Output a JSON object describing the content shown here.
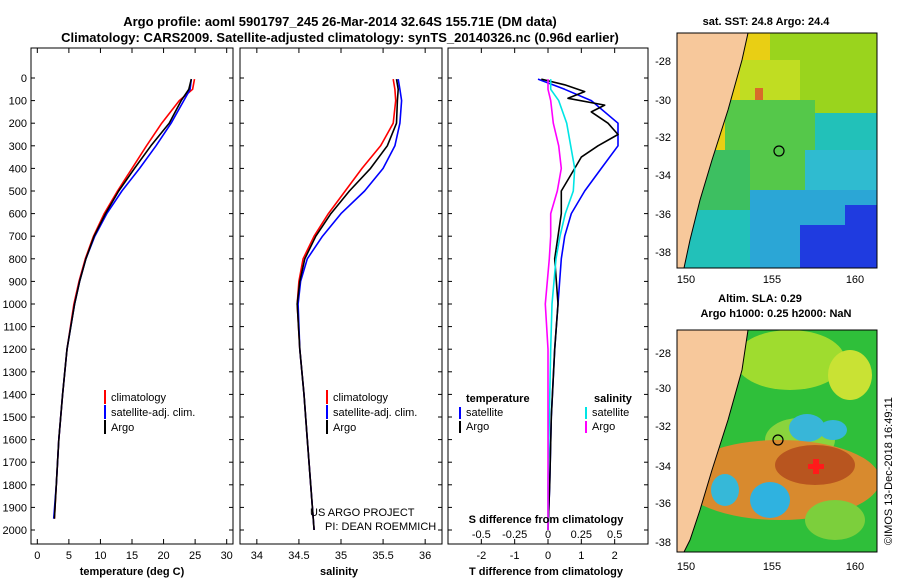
{
  "header": {
    "title_line1": "Argo profile: aoml 5901797_245 26-Mar-2014 32.64S 155.71E (DM data)",
    "title_line2": "Climatology: CARS2009. Satellite-adjusted climatology: synTS_20140326.nc (0.96d earlier)"
  },
  "colors": {
    "climatology": "#ff0000",
    "satellite": "#0000ff",
    "argo": "#000000",
    "sal_satellite": "#00e5e5",
    "sal_argo": "#ff00ff"
  },
  "depth_axis": {
    "ticks": [
      0,
      100,
      200,
      300,
      400,
      500,
      600,
      700,
      800,
      900,
      1000,
      1100,
      1200,
      1300,
      1400,
      1500,
      1600,
      1700,
      1800,
      1900,
      2000
    ],
    "ylim": [
      0,
      2060
    ]
  },
  "chart_data": [
    {
      "type": "line",
      "id": "temperature",
      "xlabel": "temperature (deg C)",
      "xlim": [
        -1,
        31
      ],
      "xticks": [
        0,
        5,
        10,
        15,
        20,
        25,
        30
      ],
      "legend": [
        "climatology",
        "satellite-adj. clim.",
        "Argo"
      ],
      "series": [
        {
          "name": "climatology",
          "depth": [
            5,
            50,
            100,
            200,
            300,
            400,
            500,
            600,
            700,
            800,
            900,
            1000,
            1200,
            1400,
            1600,
            1800,
            1950
          ],
          "values": [
            24.9,
            24.6,
            22.5,
            19.7,
            17.3,
            15.0,
            12.7,
            10.6,
            8.9,
            7.6,
            6.6,
            5.8,
            4.7,
            4.0,
            3.4,
            3.0,
            2.7
          ]
        },
        {
          "name": "satellite-adj. clim.",
          "depth": [
            5,
            50,
            100,
            200,
            300,
            400,
            500,
            600,
            700,
            800,
            900,
            1000,
            1200,
            1400,
            1600,
            1800,
            1950
          ],
          "values": [
            24.4,
            24.2,
            23.2,
            21.2,
            18.8,
            16.2,
            13.4,
            11.0,
            9.1,
            7.7,
            6.7,
            5.9,
            4.7,
            4.0,
            3.4,
            3.0,
            2.6
          ]
        },
        {
          "name": "Argo",
          "depth": [
            5,
            50,
            100,
            200,
            300,
            400,
            500,
            600,
            700,
            800,
            900,
            1000,
            1200,
            1400,
            1600,
            1800,
            1950
          ],
          "values": [
            24.4,
            24.0,
            22.8,
            20.9,
            18.0,
            15.4,
            12.9,
            10.8,
            9.0,
            7.7,
            6.7,
            5.9,
            4.7,
            4.0,
            3.4,
            3.0,
            2.7
          ]
        }
      ]
    },
    {
      "type": "line",
      "id": "salinity",
      "xlabel": "salinity",
      "xlim": [
        33.8,
        36.2
      ],
      "xticks": [
        34,
        34.5,
        35,
        35.5,
        36
      ],
      "legend": [
        "climatology",
        "satellite-adj. clim.",
        "Argo"
      ],
      "credit": [
        "US ARGO PROJECT",
        "PI: DEAN ROEMMICH"
      ],
      "series": [
        {
          "name": "climatology",
          "depth": [
            5,
            50,
            100,
            200,
            300,
            400,
            500,
            600,
            700,
            800,
            900,
            1000,
            1200,
            1400,
            1600,
            1800,
            2000
          ],
          "values": [
            35.62,
            35.64,
            35.65,
            35.62,
            35.47,
            35.25,
            35.05,
            34.85,
            34.68,
            34.55,
            34.5,
            34.48,
            34.51,
            34.56,
            34.6,
            34.64,
            34.68
          ]
        },
        {
          "name": "satellite-adj. clim.",
          "depth": [
            5,
            50,
            100,
            200,
            300,
            400,
            500,
            600,
            700,
            800,
            900,
            1000,
            1200,
            1400,
            1600,
            1800,
            2000
          ],
          "values": [
            35.68,
            35.7,
            35.72,
            35.7,
            35.64,
            35.5,
            35.28,
            35.0,
            34.78,
            34.6,
            34.52,
            34.49,
            34.51,
            34.56,
            34.6,
            34.64,
            34.68
          ]
        },
        {
          "name": "Argo",
          "depth": [
            5,
            50,
            100,
            200,
            300,
            400,
            500,
            600,
            700,
            800,
            900,
            1000,
            1200,
            1400,
            1600,
            1800,
            2000
          ],
          "values": [
            35.66,
            35.68,
            35.67,
            35.66,
            35.55,
            35.35,
            35.1,
            34.88,
            34.7,
            34.57,
            34.51,
            34.48,
            34.51,
            34.56,
            34.6,
            34.64,
            34.68
          ]
        }
      ]
    },
    {
      "type": "line",
      "id": "difference",
      "xlabel": "T difference from climatology",
      "xlabel_top": "S difference from climatology",
      "xlim": [
        -3,
        3
      ],
      "xticks": [
        -2,
        -1,
        0,
        1,
        2
      ],
      "xticks_top_labels": [
        "-0.5",
        "-0.25",
        "0",
        "0.25",
        "0.5"
      ],
      "legend_left_title": "temperature",
      "legend_right_title": "salinity",
      "legend": [
        "satellite",
        "Argo",
        "satellite",
        "Argo"
      ],
      "series": [
        {
          "name": "temperature satellite",
          "depth": [
            5,
            50,
            100,
            200,
            300,
            400,
            500,
            600,
            700,
            800,
            1000,
            1200,
            1500,
            1800,
            2000
          ],
          "values": [
            -0.3,
            0.5,
            1.3,
            2.1,
            2.1,
            1.6,
            1.1,
            0.7,
            0.5,
            0.4,
            0.3,
            0.2,
            0.1,
            0.05,
            0.0
          ]
        },
        {
          "name": "temperature Argo",
          "depth": [
            5,
            30,
            60,
            90,
            120,
            150,
            200,
            250,
            300,
            350,
            400,
            500,
            600,
            700,
            800,
            1000,
            1200,
            1500,
            1800,
            2000
          ],
          "values": [
            -0.2,
            0.5,
            1.1,
            0.6,
            1.7,
            1.3,
            1.8,
            2.1,
            1.5,
            1.0,
            0.8,
            0.4,
            0.4,
            0.3,
            0.2,
            0.3,
            0.2,
            0.1,
            0.05,
            0.0
          ]
        },
        {
          "name": "salinity satellite",
          "depth": [
            5,
            50,
            100,
            200,
            300,
            400,
            500,
            600,
            700,
            800,
            1000,
            1200,
            1500,
            1800,
            2000
          ],
          "values": [
            0.02,
            0.02,
            0.08,
            0.14,
            0.17,
            0.2,
            0.19,
            0.13,
            0.09,
            0.06,
            0.03,
            0.02,
            0.01,
            0.0,
            0.0
          ]
        },
        {
          "name": "salinity Argo",
          "depth": [
            5,
            50,
            100,
            200,
            300,
            400,
            500,
            600,
            700,
            800,
            1000,
            1200,
            1500,
            1800,
            2000
          ],
          "values": [
            0.0,
            0.0,
            0.02,
            0.04,
            0.08,
            0.1,
            0.07,
            0.02,
            0.02,
            0.01,
            -0.02,
            0.0,
            0.0,
            0.0,
            0.0
          ]
        }
      ]
    }
  ],
  "map_top": {
    "title": "sat. SST: 24.8 Argo: 24.4",
    "yticks": [
      "-28",
      "-30",
      "-32",
      "-34",
      "-36",
      "-38"
    ],
    "xticks": [
      "150",
      "155",
      "160"
    ]
  },
  "map_bottom": {
    "title1": "Altim. SLA: 0.29",
    "title2": "Argo h1000: 0.25 h2000: NaN",
    "yticks": [
      "-28",
      "-30",
      "-32",
      "-34",
      "-36",
      "-38"
    ],
    "xticks": [
      "150",
      "155",
      "160"
    ]
  },
  "watermark": "©IMOS 13-Dec-2018 16:49:11"
}
